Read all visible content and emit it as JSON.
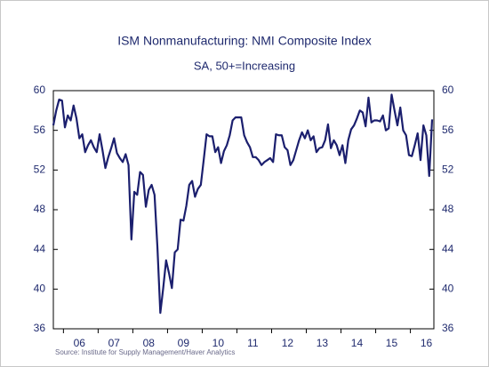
{
  "chart_data": {
    "type": "line",
    "title": "ISM Nonmanufacturing: NMI Composite Index",
    "subtitle": "SA, 50+=Increasing",
    "source": "Source: Institute for Supply Management/Haver Analytics",
    "categories": [
      null,
      null,
      null,
      null,
      null,
      null,
      null,
      null,
      null,
      "06",
      null,
      null,
      null,
      null,
      null,
      null,
      null,
      null,
      null,
      null,
      null,
      "07",
      null,
      null,
      null,
      null,
      null,
      null,
      null,
      null,
      null,
      null,
      null,
      "08",
      null,
      null,
      null,
      null,
      null,
      null,
      null,
      null,
      null,
      null,
      null,
      "09",
      null,
      null,
      null,
      null,
      null,
      null,
      null,
      null,
      null,
      null,
      null,
      "10",
      null,
      null,
      null,
      null,
      null,
      null,
      null,
      null,
      null,
      null,
      null,
      "11",
      null,
      null,
      null,
      null,
      null,
      null,
      null,
      null,
      null,
      null,
      null,
      "12",
      null,
      null,
      null,
      null,
      null,
      null,
      null,
      null,
      null,
      null,
      null,
      "13",
      null,
      null,
      null,
      null,
      null,
      null,
      null,
      null,
      null,
      null,
      null,
      "14",
      null,
      null,
      null,
      null,
      null,
      null,
      null,
      null,
      null,
      null,
      null,
      "15",
      null,
      null,
      null,
      null,
      null,
      null,
      null,
      null,
      null,
      null,
      null,
      "16",
      null,
      null
    ],
    "series": [
      {
        "name": "NMI Composite Index",
        "color": "#1b1f6e",
        "values": [
          56.5,
          58.0,
          59.1,
          59.0,
          56.3,
          57.5,
          57.0,
          58.5,
          57.2,
          55.2,
          55.6,
          53.8,
          54.5,
          55.0,
          54.3,
          53.8,
          55.6,
          54.0,
          52.2,
          53.3,
          54.2,
          55.2,
          53.7,
          53.2,
          52.8,
          53.6,
          52.5,
          45.0,
          49.8,
          49.5,
          51.8,
          51.5,
          48.3,
          50.0,
          50.5,
          49.5,
          44.2,
          37.6,
          40.1,
          42.9,
          41.6,
          40.1,
          43.7,
          44.0,
          47.0,
          46.9,
          48.4,
          50.5,
          50.9,
          49.3,
          50.1,
          50.5,
          53.0,
          55.6,
          55.4,
          55.4,
          53.8,
          54.3,
          52.7,
          53.9,
          54.5,
          55.5,
          57.0,
          57.3,
          57.3,
          57.3,
          55.5,
          54.8,
          54.3,
          53.3,
          53.3,
          53.0,
          52.5,
          52.8,
          53.0,
          53.2,
          52.8,
          55.6,
          55.5,
          55.5,
          54.3,
          54.0,
          52.5,
          53.0,
          54.0,
          55.0,
          55.8,
          55.2,
          56.0,
          55.0,
          55.4,
          53.8,
          54.2,
          54.3,
          55.0,
          56.6,
          54.2,
          55.0,
          54.5,
          53.5,
          54.5,
          52.7,
          55.0,
          56.1,
          56.5,
          57.2,
          58.0,
          57.8,
          56.4,
          59.3,
          56.8,
          57.0,
          57.0,
          56.9,
          57.5,
          56.0,
          56.2,
          59.6,
          58.0,
          56.5,
          58.3,
          56.0,
          55.5,
          53.5,
          53.4,
          54.5,
          55.7,
          53.0,
          56.5,
          55.5,
          51.4,
          57.1
        ]
      }
    ],
    "ylim": [
      36,
      60
    ],
    "yticks": [
      36,
      40,
      44,
      48,
      52,
      56,
      60
    ],
    "y2lim": [
      36,
      60
    ],
    "y2ticks": [
      36,
      40,
      44,
      48,
      52,
      56,
      60
    ]
  }
}
